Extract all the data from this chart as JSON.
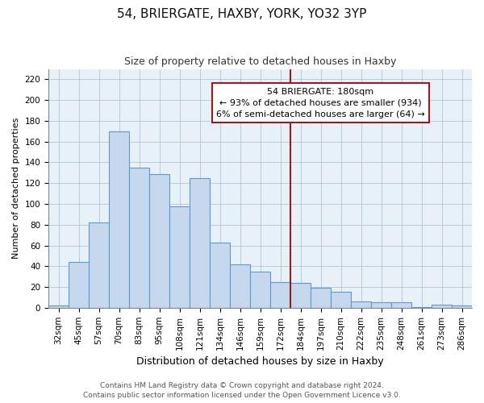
{
  "title": "54, BRIERGATE, HAXBY, YORK, YO32 3YP",
  "subtitle": "Size of property relative to detached houses in Haxby",
  "xlabel": "Distribution of detached houses by size in Haxby",
  "ylabel": "Number of detached properties",
  "bar_labels": [
    "32sqm",
    "45sqm",
    "57sqm",
    "70sqm",
    "83sqm",
    "95sqm",
    "108sqm",
    "121sqm",
    "134sqm",
    "146sqm",
    "159sqm",
    "172sqm",
    "184sqm",
    "197sqm",
    "210sqm",
    "222sqm",
    "235sqm",
    "248sqm",
    "261sqm",
    "273sqm",
    "286sqm"
  ],
  "bar_values": [
    2,
    44,
    82,
    170,
    135,
    129,
    98,
    125,
    63,
    42,
    35,
    25,
    24,
    19,
    15,
    6,
    5,
    5,
    1,
    3,
    2
  ],
  "bar_color": "#c5d8ed",
  "bar_edge_color": "#5b9bd5",
  "marker_label": "54 BRIERGATE: 180sqm",
  "marker_line_color": "#9b1a1a",
  "annotation_line1": "← 93% of detached houses are smaller (934)",
  "annotation_line2": "6% of semi-detached houses are larger (64) →",
  "annotation_box_color": "#ffffff",
  "annotation_box_edge": "#9b1a1a",
  "ylim": [
    0,
    230
  ],
  "yticks": [
    0,
    20,
    40,
    60,
    80,
    100,
    120,
    140,
    160,
    180,
    200,
    220
  ],
  "footer_line1": "Contains HM Land Registry data © Crown copyright and database right 2024.",
  "footer_line2": "Contains public sector information licensed under the Open Government Licence v3.0.",
  "title_fontsize": 11,
  "subtitle_fontsize": 9,
  "xlabel_fontsize": 9,
  "ylabel_fontsize": 8,
  "tick_fontsize": 7.5,
  "footer_fontsize": 6.5,
  "ann_fontsize": 8,
  "bg_color": "#e8f0f8"
}
